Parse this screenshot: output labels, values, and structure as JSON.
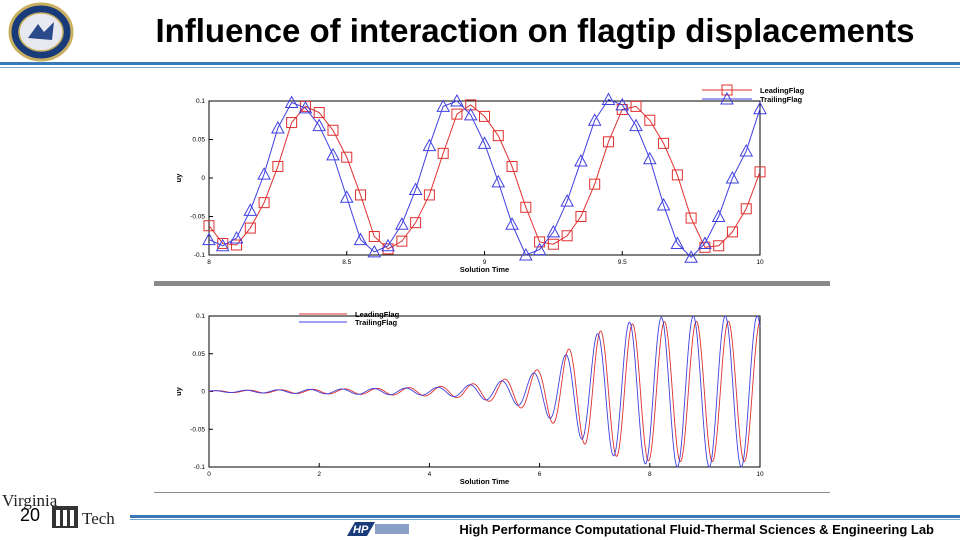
{
  "slide": {
    "title": "Influence of interaction on flagtip displacements",
    "page_number": "20",
    "footer": "High Performance Computational Fluid-Thermal Sciences & Engineering Lab",
    "logo_left_text": "Virginia",
    "logo_right_text": "Tech"
  },
  "colors": {
    "leading": "#e03030",
    "trailing": "#4040e0",
    "accent_bar": "#3a78b8"
  },
  "chart_data": [
    {
      "type": "line",
      "xlabel": "Solution Time",
      "ylabel": "uy",
      "xlim": [
        8,
        10
      ],
      "ylim": [
        -0.1,
        0.1
      ],
      "xticks": [
        "8",
        "8.5",
        "9",
        "9.5",
        "10"
      ],
      "yticks": [
        "0.1",
        "0.05",
        "0",
        "-0.05",
        "-0.1"
      ],
      "legend_position": "top-right",
      "series": [
        {
          "name": "LeadingFlag",
          "marker": "square",
          "x": [
            8,
            8.05,
            8.1,
            8.15,
            8.2,
            8.25,
            8.3,
            8.35,
            8.4,
            8.45,
            8.5,
            8.55,
            8.6,
            8.65,
            8.7,
            8.75,
            8.8,
            8.85,
            8.9,
            8.95,
            9,
            9.05,
            9.1,
            9.15,
            9.2,
            9.25,
            9.3,
            9.35,
            9.4,
            9.45,
            9.5,
            9.55,
            9.6,
            9.65,
            9.7,
            9.75,
            9.8,
            9.85,
            9.9,
            9.95,
            10
          ],
          "values": [
            -0.062,
            -0.085,
            -0.087,
            -0.065,
            -0.032,
            0.015,
            0.072,
            0.093,
            0.085,
            0.062,
            0.027,
            -0.022,
            -0.076,
            -0.092,
            -0.082,
            -0.058,
            -0.022,
            0.032,
            0.083,
            0.095,
            0.08,
            0.055,
            0.015,
            -0.038,
            -0.083,
            -0.086,
            -0.075,
            -0.05,
            -0.008,
            0.047,
            0.089,
            0.093,
            0.075,
            0.045,
            0.004,
            -0.052,
            -0.09,
            -0.088,
            -0.07,
            -0.04,
            0.008
          ]
        },
        {
          "name": "TrailingFlag",
          "marker": "triangle",
          "x": [
            8,
            8.05,
            8.1,
            8.15,
            8.2,
            8.25,
            8.3,
            8.35,
            8.4,
            8.45,
            8.5,
            8.55,
            8.6,
            8.65,
            8.7,
            8.75,
            8.8,
            8.85,
            8.9,
            8.95,
            9,
            9.05,
            9.1,
            9.15,
            9.2,
            9.25,
            9.3,
            9.35,
            9.4,
            9.45,
            9.5,
            9.55,
            9.6,
            9.65,
            9.7,
            9.75,
            9.8,
            9.85,
            9.9,
            9.95,
            10
          ],
          "values": [
            -0.08,
            -0.088,
            -0.078,
            -0.042,
            0.005,
            0.065,
            0.098,
            0.091,
            0.068,
            0.03,
            -0.025,
            -0.08,
            -0.096,
            -0.088,
            -0.06,
            -0.015,
            0.042,
            0.093,
            0.1,
            0.082,
            0.045,
            -0.005,
            -0.06,
            -0.1,
            -0.093,
            -0.07,
            -0.03,
            0.022,
            0.075,
            0.102,
            0.095,
            0.068,
            0.025,
            -0.035,
            -0.085,
            -0.103,
            -0.085,
            -0.05,
            0.0,
            0.035,
            0.09
          ]
        }
      ]
    },
    {
      "type": "line",
      "xlabel": "Solution Time",
      "ylabel": "uy",
      "xlim": [
        0,
        10
      ],
      "ylim": [
        -0.1,
        0.1
      ],
      "xticks": [
        "0",
        "2",
        "4",
        "6",
        "8",
        "10"
      ],
      "yticks": [
        "0.1",
        "0.05",
        "0",
        "-0.05",
        "-0.1"
      ],
      "legend_position": "top-left",
      "series": [
        {
          "name": "LeadingFlag",
          "envelope_x": [
            0,
            1,
            2,
            3,
            4,
            4.5,
            5,
            5.5,
            6,
            6.5,
            7,
            7.5,
            8,
            8.5,
            9,
            9.5,
            10
          ],
          "envelope_amp": [
            0.001,
            0.002,
            0.003,
            0.004,
            0.006,
            0.008,
            0.012,
            0.018,
            0.03,
            0.055,
            0.078,
            0.088,
            0.092,
            0.093,
            0.093,
            0.093,
            0.093
          ],
          "period": 0.58,
          "phase": 0.0
        },
        {
          "name": "TrailingFlag",
          "envelope_x": [
            0,
            1,
            2,
            3,
            4,
            4.5,
            5,
            5.5,
            6,
            6.5,
            7,
            7.5,
            8,
            8.5,
            9,
            9.5,
            10
          ],
          "envelope_amp": [
            0.001,
            0.002,
            0.003,
            0.004,
            0.005,
            0.007,
            0.011,
            0.016,
            0.027,
            0.05,
            0.075,
            0.09,
            0.097,
            0.1,
            0.1,
            0.1,
            0.1
          ],
          "period": 0.58,
          "phase": 0.6
        }
      ]
    }
  ]
}
